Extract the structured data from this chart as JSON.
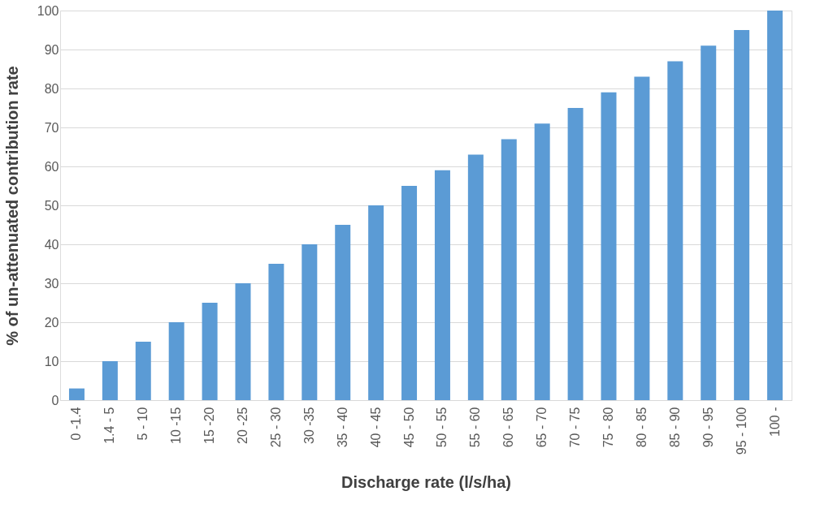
{
  "chart_data": {
    "type": "bar",
    "xlabel": "Discharge rate (l/s/ha)",
    "ylabel": "% of un-attenuated contribution rate",
    "categories": [
      "0 -1.4",
      "1.4 - 5",
      "5 - 10",
      "10 -15",
      "15 -20",
      "20 -25",
      "25 - 30",
      "30 -35",
      "35 - 40",
      "40 - 45",
      "45 - 50",
      "50 - 55",
      "55 - 60",
      "60 - 65",
      "65 - 70",
      "70 - 75",
      "75 - 80",
      "80 - 85",
      "85 - 90",
      "90 - 95",
      "95 - 100",
      "100 -"
    ],
    "values": [
      3,
      10,
      15,
      20,
      25,
      30,
      35,
      40,
      45,
      50,
      55,
      59,
      63,
      67,
      71,
      75,
      79,
      83,
      87,
      91,
      95,
      100
    ],
    "color": "#5b9bd5",
    "ylim": [
      0,
      100
    ],
    "yticks": [
      0,
      10,
      20,
      30,
      40,
      50,
      60,
      70,
      80,
      90,
      100
    ],
    "grid": "y"
  }
}
